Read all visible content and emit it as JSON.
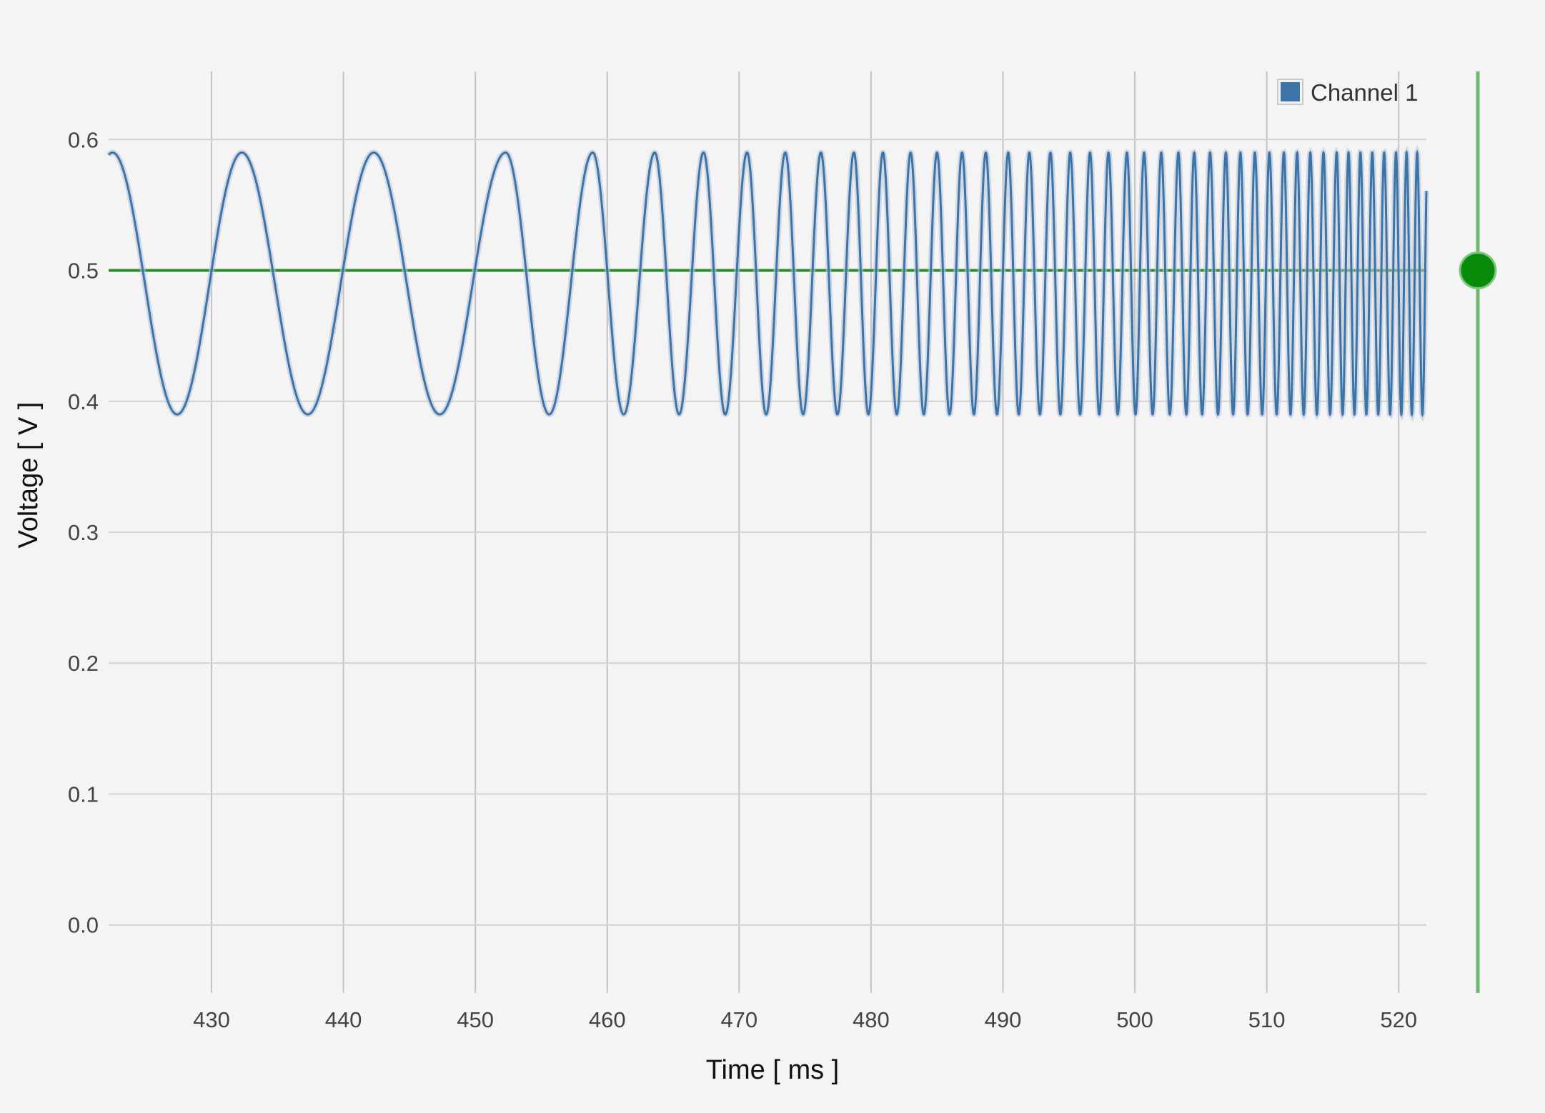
{
  "chart_data": {
    "type": "line",
    "title": "",
    "xlabel": "Time [ ms ]",
    "ylabel": "Voltage [ V ]",
    "xlim": [
      422.2,
      522.1
    ],
    "ylim": [
      -0.052,
      0.652
    ],
    "x_ticks": [
      430,
      440,
      450,
      460,
      470,
      480,
      490,
      500,
      510,
      520
    ],
    "x_tick_labels": [
      "430",
      "440",
      "450",
      "460",
      "470",
      "480",
      "490",
      "500",
      "510",
      "520"
    ],
    "y_ticks": [
      0.0,
      0.1,
      0.2,
      0.3,
      0.4,
      0.5,
      0.6
    ],
    "y_tick_labels": [
      "0.0",
      "0.1",
      "0.2",
      "0.3",
      "0.4",
      "0.5",
      "0.6"
    ],
    "grid": true,
    "legend": {
      "position": "top-right",
      "entries": [
        "Channel 1"
      ]
    },
    "series": [
      {
        "name": "Channel 1",
        "color": "#3a74a8",
        "x_range": [
          422.2,
          522.1
        ],
        "description_points": {
          "peaks_x": [
            422.5,
            432.3,
            442.3,
            452.3,
            458.9,
            463.6,
            467.3,
            470.6,
            473.5,
            476.2,
            478.7,
            480.9,
            483.0,
            485.0,
            486.9,
            488.7,
            490.4,
            492.0,
            493.6,
            495.1,
            496.6,
            498.0,
            499.4,
            500.7,
            502.0,
            503.3,
            504.5,
            505.7,
            506.9,
            508.0,
            509.1,
            510.2,
            511.3,
            512.3,
            513.3,
            514.3,
            515.3,
            516.2,
            517.1,
            518.0,
            518.9,
            519.8,
            520.6,
            521.4
          ],
          "peak_value": 0.59,
          "trough_value": 0.39
        }
      }
    ],
    "reference_line": {
      "y": 0.5,
      "color": "#2e8b2e"
    },
    "marker": {
      "x": 526.0,
      "y": 0.5,
      "color": "#0a8a0a",
      "line_color": "#6fb86f"
    }
  }
}
